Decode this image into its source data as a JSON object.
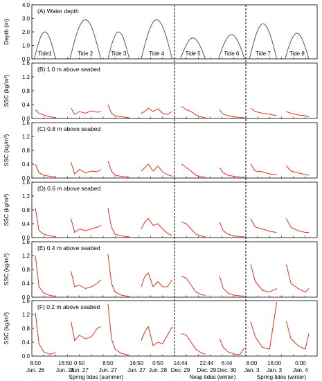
{
  "chart_data": {
    "type": "line",
    "panels": [
      {
        "title": "(A) Water depth",
        "ylabel": "Depth (m)",
        "ylim": [
          0,
          4
        ],
        "yticks": [
          "0.0",
          "1.0",
          "2.0",
          "3.0",
          "4.0"
        ],
        "kind": "depth"
      },
      {
        "title": "(B) 1.0 m above seabed",
        "ylabel": "SSC (kg/m³)",
        "ylim": [
          0,
          1.6
        ],
        "yticks": [
          "0.0",
          "0.4",
          "0.8",
          "1.2",
          "1.6"
        ],
        "kind": "ssc"
      },
      {
        "title": "(C) 0.8 m above seabed",
        "ylabel": "SSC (kg/m³)",
        "ylim": [
          0,
          1.6
        ],
        "yticks": [
          "0.0",
          "0.4",
          "0.8",
          "1.2",
          "1.6"
        ],
        "kind": "ssc"
      },
      {
        "title": "(D) 0.6 m above seabed",
        "ylabel": "SSC (kg/m³)",
        "ylim": [
          0,
          1.6
        ],
        "yticks": [
          "0.0",
          "0.4",
          "0.8",
          "1.2",
          "1.6"
        ],
        "kind": "ssc"
      },
      {
        "title": "(E) 0.4 m above seabed",
        "ylabel": "SSC (kg/m³)",
        "ylim": [
          0,
          1.6
        ],
        "yticks": [
          "0.0",
          "0.4",
          "0.8",
          "1.2",
          "1.6"
        ],
        "kind": "ssc"
      },
      {
        "title": "(F) 0.2 m above seabed",
        "ylabel": "SSC (kg/m³)",
        "ylim": [
          0,
          1.6
        ],
        "yticks": [
          "0.0",
          "0.4",
          "0.8",
          "1.2",
          "1.6"
        ],
        "kind": "ssc"
      }
    ],
    "tide_labels": [
      "Tide1",
      "Tide 2",
      "Tide 3",
      "Tide 4",
      "Tide 5",
      "Tide 6",
      "Tide 7",
      "Tide 8"
    ],
    "time_ticks": [
      "8:50",
      "16:50",
      "0:50",
      "8:50",
      "16:50",
      "0:50",
      "14:44",
      "22:44",
      "6:44",
      "8:00",
      "16:00",
      "0:00"
    ],
    "date_ticks": [
      "Jun. 26",
      "Jun. 26",
      "Jun. 27",
      "Jun. 27",
      "Jun. 27",
      "Jun. 28",
      "Dec. 29",
      "Dec. 29",
      "Dec. 30",
      "Jan. 3",
      "Jan. 3",
      "Jan. 4"
    ],
    "group_labels": [
      "Spring tides (summer)",
      "Neap tides (winter)",
      "Spring tides (winter)"
    ],
    "depth_series": [
      {
        "tide": 1,
        "start": 0.2,
        "end": 2.0,
        "peak": 2.0
      },
      {
        "tide": 2,
        "start": 3.2,
        "end": 5.8,
        "peak": 2.9
      },
      {
        "tide": 3,
        "start": 6.4,
        "end": 8.2,
        "peak": 2.0
      },
      {
        "tide": 4,
        "start": 9.2,
        "end": 11.8,
        "peak": 2.9
      },
      {
        "tide": 5,
        "start": 12.5,
        "end": 14.6,
        "peak": 1.55
      },
      {
        "tide": 6,
        "start": 15.7,
        "end": 17.9,
        "peak": 1.8
      },
      {
        "tide": 7,
        "start": 18.3,
        "end": 20.6,
        "peak": 2.6
      },
      {
        "tide": 8,
        "start": 21.3,
        "end": 23.3,
        "peak": 1.9
      }
    ],
    "ssc_series": [
      [
        {
          "x": [
            0.3,
            0.6,
            1.0,
            1.5,
            2.0
          ],
          "y": [
            0.25,
            0.15,
            0.1,
            0.05,
            0.02
          ]
        },
        {
          "x": [
            3.3,
            3.6,
            4.0,
            4.5,
            5.0,
            5.5,
            5.8
          ],
          "y": [
            0.3,
            0.12,
            0.2,
            0.15,
            0.22,
            0.18,
            0.2
          ]
        },
        {
          "x": [
            6.4,
            6.7,
            7.0,
            7.5,
            8.0,
            8.2
          ],
          "y": [
            0.4,
            0.15,
            0.08,
            0.05,
            0.03,
            0.02
          ]
        },
        {
          "x": [
            9.2,
            9.5,
            9.8,
            10.2,
            10.6,
            11.0,
            11.4,
            11.8
          ],
          "y": [
            0.15,
            0.2,
            0.3,
            0.2,
            0.28,
            0.15,
            0.12,
            0.2
          ]
        },
        {
          "x": [
            12.6,
            13.0,
            13.4,
            13.8,
            14.2,
            14.6
          ],
          "y": [
            0.35,
            0.25,
            0.2,
            0.1,
            0.05,
            0.02
          ]
        },
        {
          "x": [
            15.8,
            16.1,
            16.5,
            17.0,
            17.5,
            17.9
          ],
          "y": [
            0.25,
            0.12,
            0.08,
            0.05,
            0.03,
            0.02
          ]
        },
        {
          "x": [
            18.4,
            18.8,
            19.4,
            20.0,
            20.6
          ],
          "y": [
            0.3,
            0.2,
            0.15,
            0.12,
            0.08
          ]
        },
        {
          "x": [
            21.4,
            21.8,
            22.4,
            23.0,
            23.3
          ],
          "y": [
            0.2,
            0.15,
            0.1,
            0.08,
            0.05
          ]
        }
      ],
      [
        {
          "x": [
            0.3,
            0.6,
            1.0,
            1.5,
            2.0
          ],
          "y": [
            0.4,
            0.15,
            0.08,
            0.05,
            0.03
          ]
        },
        {
          "x": [
            3.3,
            3.6,
            4.0,
            4.5,
            5.0,
            5.5,
            5.8
          ],
          "y": [
            0.45,
            0.12,
            0.25,
            0.15,
            0.2,
            0.18,
            0.25
          ]
        },
        {
          "x": [
            6.4,
            6.7,
            7.0,
            7.5,
            8.0,
            8.2
          ],
          "y": [
            0.5,
            0.2,
            0.08,
            0.05,
            0.03,
            0.02
          ]
        },
        {
          "x": [
            9.2,
            9.5,
            9.8,
            10.2,
            10.6,
            11.0,
            11.4,
            11.8
          ],
          "y": [
            0.2,
            0.3,
            0.4,
            0.2,
            0.35,
            0.18,
            0.1,
            0.05
          ]
        },
        {
          "x": [
            12.6,
            13.0,
            13.4,
            13.8,
            14.2,
            14.6
          ],
          "y": [
            0.4,
            0.3,
            0.2,
            0.08,
            0.04,
            0.02
          ]
        },
        {
          "x": [
            15.8,
            16.1,
            16.5,
            17.0,
            17.5,
            17.9
          ],
          "y": [
            0.3,
            0.15,
            0.08,
            0.05,
            0.03,
            0.02
          ]
        },
        {
          "x": [
            18.4,
            18.8,
            19.4,
            20.0,
            20.6
          ],
          "y": [
            0.4,
            0.2,
            0.18,
            0.12,
            0.1
          ]
        },
        {
          "x": [
            21.4,
            21.8,
            22.4,
            23.0,
            23.3
          ],
          "y": [
            0.35,
            0.2,
            0.15,
            0.1,
            0.08
          ]
        }
      ],
      [
        {
          "x": [
            0.3,
            0.6,
            1.0,
            1.5,
            2.0
          ],
          "y": [
            0.85,
            0.2,
            0.1,
            0.05,
            0.03
          ]
        },
        {
          "x": [
            3.3,
            3.6,
            4.0,
            4.5,
            5.0,
            5.5,
            5.8
          ],
          "y": [
            0.55,
            0.15,
            0.25,
            0.2,
            0.25,
            0.3,
            0.35
          ]
        },
        {
          "x": [
            6.4,
            6.7,
            7.0,
            7.5,
            8.0,
            8.2
          ],
          "y": [
            0.85,
            0.3,
            0.1,
            0.05,
            0.03,
            0.02
          ]
        },
        {
          "x": [
            9.2,
            9.5,
            9.8,
            10.2,
            10.6,
            11.0,
            11.4,
            11.8
          ],
          "y": [
            0.25,
            0.45,
            0.55,
            0.35,
            0.4,
            0.25,
            0.12,
            0.06
          ]
        },
        {
          "x": [
            12.6,
            13.0,
            13.4,
            13.8,
            14.2,
            14.6
          ],
          "y": [
            0.45,
            0.4,
            0.25,
            0.1,
            0.05,
            0.02
          ]
        },
        {
          "x": [
            15.8,
            16.1,
            16.5,
            17.0,
            17.5,
            17.9
          ],
          "y": [
            0.45,
            0.2,
            0.1,
            0.05,
            0.03,
            0.02
          ]
        },
        {
          "x": [
            18.4,
            18.8,
            19.4,
            20.0,
            20.6
          ],
          "y": [
            0.55,
            0.3,
            0.25,
            0.18,
            0.15
          ]
        },
        {
          "x": [
            21.4,
            21.8,
            22.4,
            23.0,
            23.3
          ],
          "y": [
            0.55,
            0.3,
            0.2,
            0.15,
            0.15
          ]
        }
      ],
      [
        {
          "x": [
            0.3,
            0.6,
            1.0,
            1.5,
            2.0
          ],
          "y": [
            1.2,
            0.3,
            0.12,
            0.05,
            0.03
          ]
        },
        {
          "x": [
            3.3,
            3.6,
            4.0,
            4.5,
            5.0,
            5.5,
            5.8
          ],
          "y": [
            0.75,
            0.3,
            0.35,
            0.25,
            0.3,
            0.4,
            0.5
          ]
        },
        {
          "x": [
            6.4,
            6.7,
            7.0,
            7.5,
            8.0,
            8.2
          ],
          "y": [
            1.25,
            0.4,
            0.15,
            0.06,
            0.03,
            0.02
          ]
        },
        {
          "x": [
            9.2,
            9.5,
            9.8,
            10.2,
            10.6,
            11.0,
            11.4,
            11.8
          ],
          "y": [
            0.3,
            0.6,
            0.7,
            0.3,
            0.45,
            0.3,
            0.3,
            0.5
          ]
        },
        {
          "x": [
            12.6,
            13.0,
            13.4,
            13.8,
            14.2,
            14.6
          ],
          "y": [
            0.6,
            0.55,
            0.35,
            0.15,
            0.08,
            0.05
          ]
        },
        {
          "x": [
            15.8,
            16.1,
            16.5,
            17.0,
            17.5,
            17.9
          ],
          "y": [
            0.6,
            0.25,
            0.12,
            0.06,
            0.04,
            0.03
          ]
        },
        {
          "x": [
            18.4,
            18.8,
            19.4,
            20.0,
            20.6
          ],
          "y": [
            0.95,
            0.45,
            0.2,
            0.15,
            0.25
          ]
        },
        {
          "x": [
            21.4,
            21.8,
            22.4,
            23.0,
            23.3
          ],
          "y": [
            0.95,
            0.4,
            0.25,
            0.15,
            0.25
          ]
        }
      ],
      [
        {
          "x": [
            0.3,
            0.6,
            1.0,
            1.5,
            2.0
          ],
          "y": [
            1.25,
            0.35,
            0.12,
            0.05,
            0.1
          ]
        },
        {
          "x": [
            3.3,
            3.6,
            4.0,
            4.5,
            5.0,
            5.5,
            5.8
          ],
          "y": [
            1.0,
            0.45,
            0.6,
            0.5,
            0.55,
            0.8,
            0.85
          ]
        },
        {
          "x": [
            6.4,
            6.7,
            7.0,
            7.5,
            8.0,
            8.2
          ],
          "y": [
            1.5,
            0.5,
            0.2,
            0.08,
            0.04,
            0.03
          ]
        },
        {
          "x": [
            9.2,
            9.5,
            9.8,
            10.2,
            10.6,
            11.0,
            11.4,
            11.8
          ],
          "y": [
            0.45,
            0.7,
            0.85,
            0.3,
            0.4,
            0.35,
            0.6,
            0.85
          ]
        },
        {
          "x": [
            12.6,
            13.0,
            13.4,
            13.8,
            14.2,
            14.6
          ],
          "y": [
            0.65,
            0.6,
            0.4,
            0.2,
            0.1,
            0.05
          ]
        },
        {
          "x": [
            15.8,
            16.1,
            16.5,
            17.0,
            17.5,
            17.9
          ],
          "y": [
            0.5,
            0.25,
            0.12,
            0.06,
            0.04,
            0.25
          ]
        },
        {
          "x": [
            18.4,
            18.8,
            19.4,
            20.0,
            20.6
          ],
          "y": [
            1.0,
            0.55,
            0.25,
            0.2,
            1.55
          ]
        },
        {
          "x": [
            21.4,
            21.8,
            22.4,
            23.0,
            23.3
          ],
          "y": [
            1.0,
            0.5,
            0.3,
            0.2,
            0.65
          ]
        }
      ]
    ]
  }
}
